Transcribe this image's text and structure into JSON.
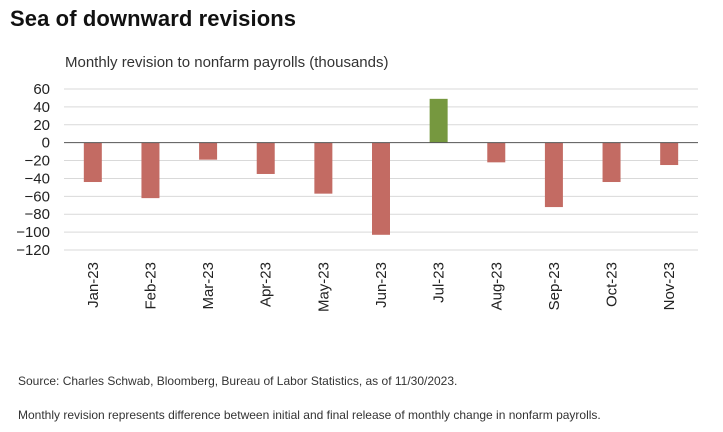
{
  "page": {
    "title": "Sea of downward revisions",
    "source_note": "Source: Charles Schwab, Bloomberg, Bureau of Labor Statistics, as of 11/30/2023.",
    "definition_note": "Monthly revision represents difference between initial and final release of monthly change in nonfarm payrolls."
  },
  "chart_data": {
    "type": "bar",
    "title": "Monthly revision to nonfarm payrolls (thousands)",
    "xlabel": "",
    "ylabel": "",
    "categories": [
      "Jan-23",
      "Feb-23",
      "Mar-23",
      "Apr-23",
      "May-23",
      "Jun-23",
      "Jul-23",
      "Aug-23",
      "Sep-23",
      "Oct-23",
      "Nov-23"
    ],
    "values": [
      -44,
      -62,
      -19,
      -35,
      -57,
      -103,
      49,
      -22,
      -72,
      -44,
      -25
    ],
    "ylim": [
      -120,
      60
    ],
    "yticks": [
      60,
      40,
      20,
      0,
      -20,
      -40,
      -60,
      -80,
      -100,
      -120
    ],
    "grid": true,
    "legend": "none",
    "colors": {
      "negative": "#c36b63",
      "positive": "#76983f",
      "grid": "#d9d9d9",
      "axis": "#555555"
    }
  }
}
